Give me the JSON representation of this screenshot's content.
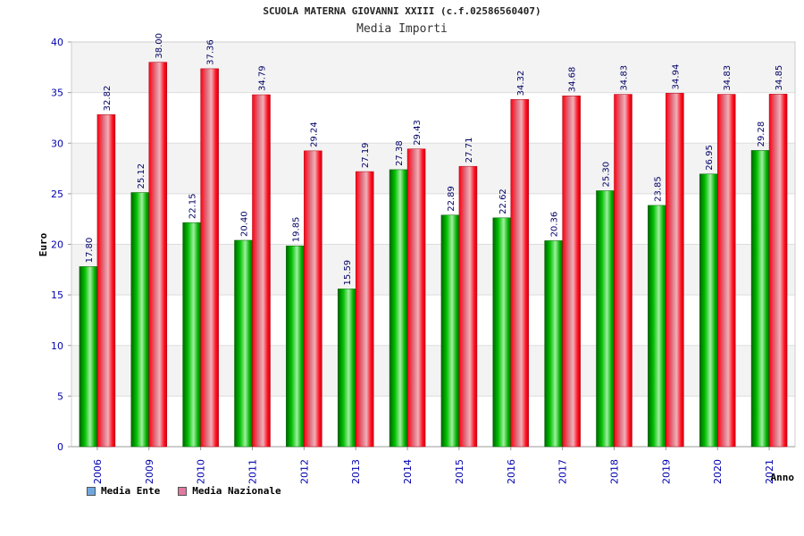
{
  "chart_data": {
    "type": "bar",
    "title": "SCUOLA MATERNA GIOVANNI XXIII (c.f.02586560407)",
    "subtitle": "Media Importi",
    "ylabel": "Euro",
    "xlabel": "Anno",
    "ylim": [
      0,
      40
    ],
    "yticks": [
      "0",
      "5",
      "10",
      "15",
      "20",
      "25",
      "30",
      "35",
      "40"
    ],
    "categories": [
      "2006",
      "2009",
      "2010",
      "2011",
      "2012",
      "2013",
      "2014",
      "2015",
      "2016",
      "2017",
      "2018",
      "2019",
      "2020",
      "2021"
    ],
    "series": [
      {
        "name": "Media Ente",
        "color": "#00a000",
        "legend_color": "#6fa8e0",
        "values": [
          17.8,
          25.12,
          22.15,
          20.4,
          19.85,
          15.59,
          27.38,
          22.89,
          22.62,
          20.36,
          25.3,
          23.85,
          26.95,
          29.28
        ],
        "labels": [
          "17.80",
          "25.12",
          "22.15",
          "20.40",
          "19.85",
          "15.59",
          "27.38",
          "22.89",
          "22.62",
          "20.36",
          "25.30",
          "23.85",
          "26.95",
          "29.28"
        ]
      },
      {
        "name": "Media Nazionale",
        "color": "#e00010",
        "legend_color": "#e07aa0",
        "values": [
          32.82,
          38.0,
          37.36,
          34.79,
          29.24,
          27.19,
          29.43,
          27.71,
          34.32,
          34.68,
          34.83,
          34.94,
          34.83,
          34.85
        ],
        "labels": [
          "32.82",
          "38.00",
          "37.36",
          "34.79",
          "29.24",
          "27.19",
          "29.43",
          "27.71",
          "34.32",
          "34.68",
          "34.83",
          "34.94",
          "34.83",
          "34.85"
        ]
      }
    ],
    "grid": true,
    "legend_position": "bottom-left"
  }
}
